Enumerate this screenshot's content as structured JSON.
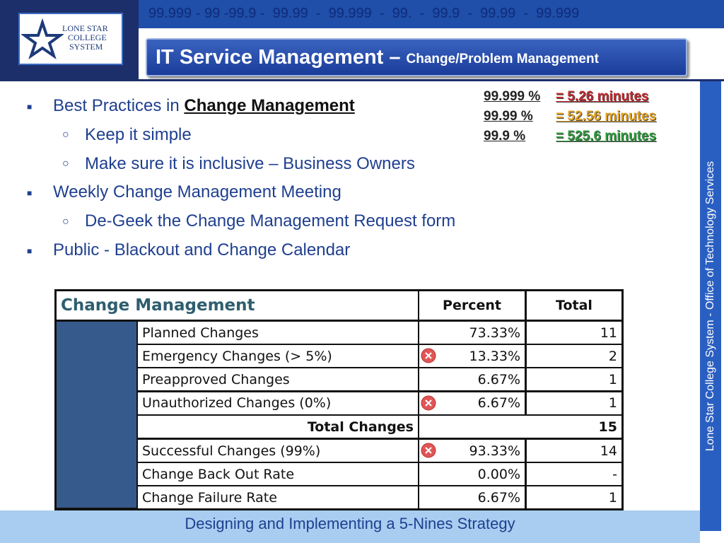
{
  "header": {
    "ticker": "99.999 - 99 -99.9 -  99.99  -  99.999  -  99.  -  99.9  -  99.99  -  99.999",
    "logo": [
      "Lone Star",
      "College",
      "System"
    ],
    "title": "IT Service Management –",
    "subtitle": "Change/Problem Management"
  },
  "bullets": [
    {
      "level": 1,
      "text": "Best Practices in ",
      "emphasis": "Change Management"
    },
    {
      "level": 2,
      "text": "Keep it simple"
    },
    {
      "level": 2,
      "text": "Make sure it is inclusive – Business Owners"
    },
    {
      "level": 1,
      "text": "Weekly Change Management Meeting"
    },
    {
      "level": 2,
      "text": "De-Geek the Change Management Request form"
    },
    {
      "level": 1,
      "text": "Public - Blackout and Change Calendar"
    }
  ],
  "nines": [
    {
      "percent": "99.999 %",
      "minutes": "= 5.26 minutes",
      "color": "#c0282d"
    },
    {
      "percent": "99.99 %",
      "minutes": "= 52.56 minutes",
      "color": "#e0a020"
    },
    {
      "percent": "99.9 %",
      "minutes": "= 525.6 minutes",
      "color": "#2e9a3c"
    }
  ],
  "table": {
    "title": "Change Management",
    "headers": [
      "Percent",
      "Total"
    ],
    "rows": [
      {
        "label": "Planned Changes",
        "percent": "73.33%",
        "total": "11",
        "alert": false
      },
      {
        "label": "Emergency Changes (> 5%)",
        "percent": "13.33%",
        "total": "2",
        "alert": true
      },
      {
        "label": "Preapproved Changes",
        "percent": "6.67%",
        "total": "1",
        "alert": false
      },
      {
        "label": "Unauthorized Changes (0%)",
        "percent": "6.67%",
        "total": "1",
        "alert": true
      }
    ],
    "summary": {
      "label": "Total Changes",
      "total": "15"
    },
    "rows2": [
      {
        "label": "Successful Changes (99%)",
        "percent": "93.33%",
        "total": "14",
        "alert": true
      },
      {
        "label": "Change Back Out Rate",
        "percent": "0.00%",
        "total": "-",
        "alert": false
      },
      {
        "label": "Change Failure Rate",
        "percent": "6.67%",
        "total": "1",
        "alert": false
      }
    ]
  },
  "sidebar": "Lone Star College System - Office of Technology Services",
  "footer": "Designing and Implementing a 5-Nines Strategy"
}
